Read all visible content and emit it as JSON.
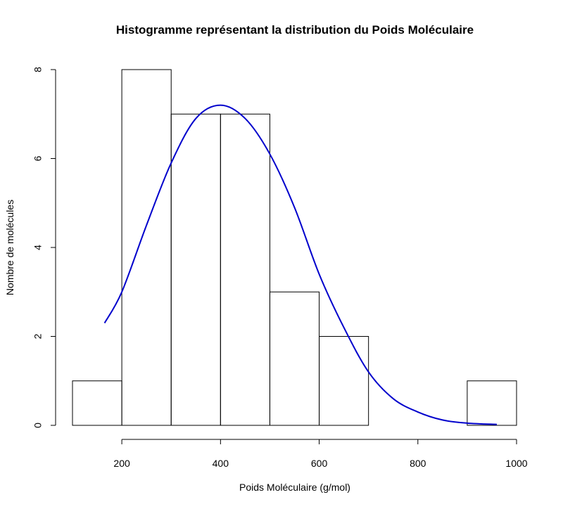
{
  "chart_data": {
    "type": "bar",
    "title": "Histogramme représentant la distribution du Poids Moléculaire",
    "xlabel": "Poids Moléculaire (g/mol)",
    "ylabel": "Nombre de molécules",
    "xlim": [
      100,
      1000
    ],
    "ylim": [
      0,
      8
    ],
    "x_ticks": [
      200,
      400,
      600,
      800,
      1000
    ],
    "y_ticks": [
      0,
      2,
      4,
      6,
      8
    ],
    "x_tick_labels": [
      "200",
      "400",
      "600",
      "800",
      "1000"
    ],
    "y_tick_labels": [
      "0",
      "2",
      "4",
      "6",
      "8"
    ],
    "bins": [
      {
        "from": 100,
        "to": 200,
        "count": 1
      },
      {
        "from": 200,
        "to": 300,
        "count": 8
      },
      {
        "from": 300,
        "to": 400,
        "count": 7
      },
      {
        "from": 400,
        "to": 500,
        "count": 7
      },
      {
        "from": 500,
        "to": 600,
        "count": 3
      },
      {
        "from": 600,
        "to": 700,
        "count": 2
      },
      {
        "from": 700,
        "to": 800,
        "count": 0
      },
      {
        "from": 800,
        "to": 900,
        "count": 0
      },
      {
        "from": 900,
        "to": 1000,
        "count": 1
      }
    ],
    "density_curve": {
      "x": [
        165,
        200,
        250,
        300,
        350,
        400,
        450,
        500,
        550,
        600,
        650,
        700,
        750,
        800,
        850,
        900,
        960
      ],
      "y": [
        2.3,
        3.0,
        4.5,
        5.9,
        6.9,
        7.2,
        6.9,
        6.1,
        4.9,
        3.4,
        2.2,
        1.2,
        0.6,
        0.3,
        0.12,
        0.05,
        0.02
      ]
    },
    "grid": false,
    "legend": "none",
    "colors": {
      "bars": "#000000",
      "curve": "#0000cc"
    }
  }
}
